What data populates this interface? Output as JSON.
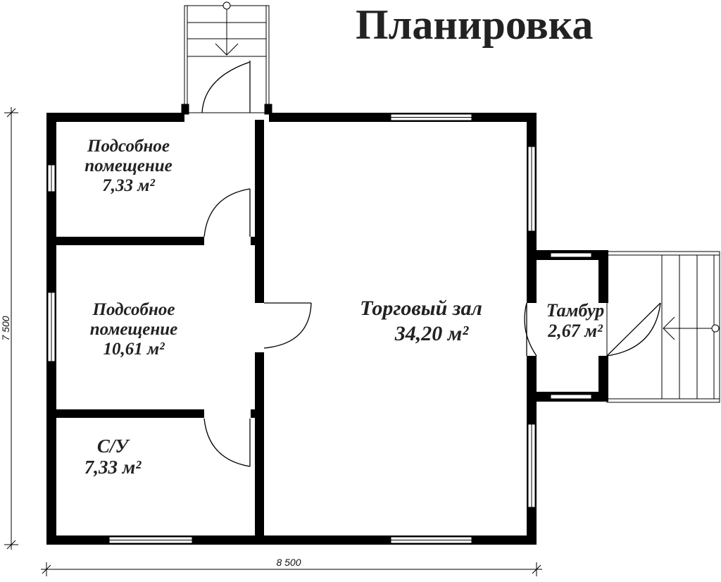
{
  "title": "Планировка",
  "rooms": [
    {
      "name": "Подсобное помещение",
      "line1": "Подсобное",
      "line2": "помещение",
      "area": "7,33 м²"
    },
    {
      "name": "Подсобное помещение",
      "line1": "Подсобное",
      "line2": "помещение",
      "area": "10,61 м²"
    },
    {
      "name": "С/У",
      "line1": "С/У",
      "area": "7,33 м²"
    },
    {
      "name": "Торговый зал",
      "line1": "Торговый зал",
      "area": "34,20 м²"
    },
    {
      "name": "Тамбур",
      "line1": "Тамбур",
      "area": "2,67 м²"
    }
  ],
  "dimensions": {
    "width": "8 500",
    "height": "7 500"
  },
  "colors": {
    "wall": "#000000",
    "text": "#222222",
    "background": "#ffffff"
  }
}
